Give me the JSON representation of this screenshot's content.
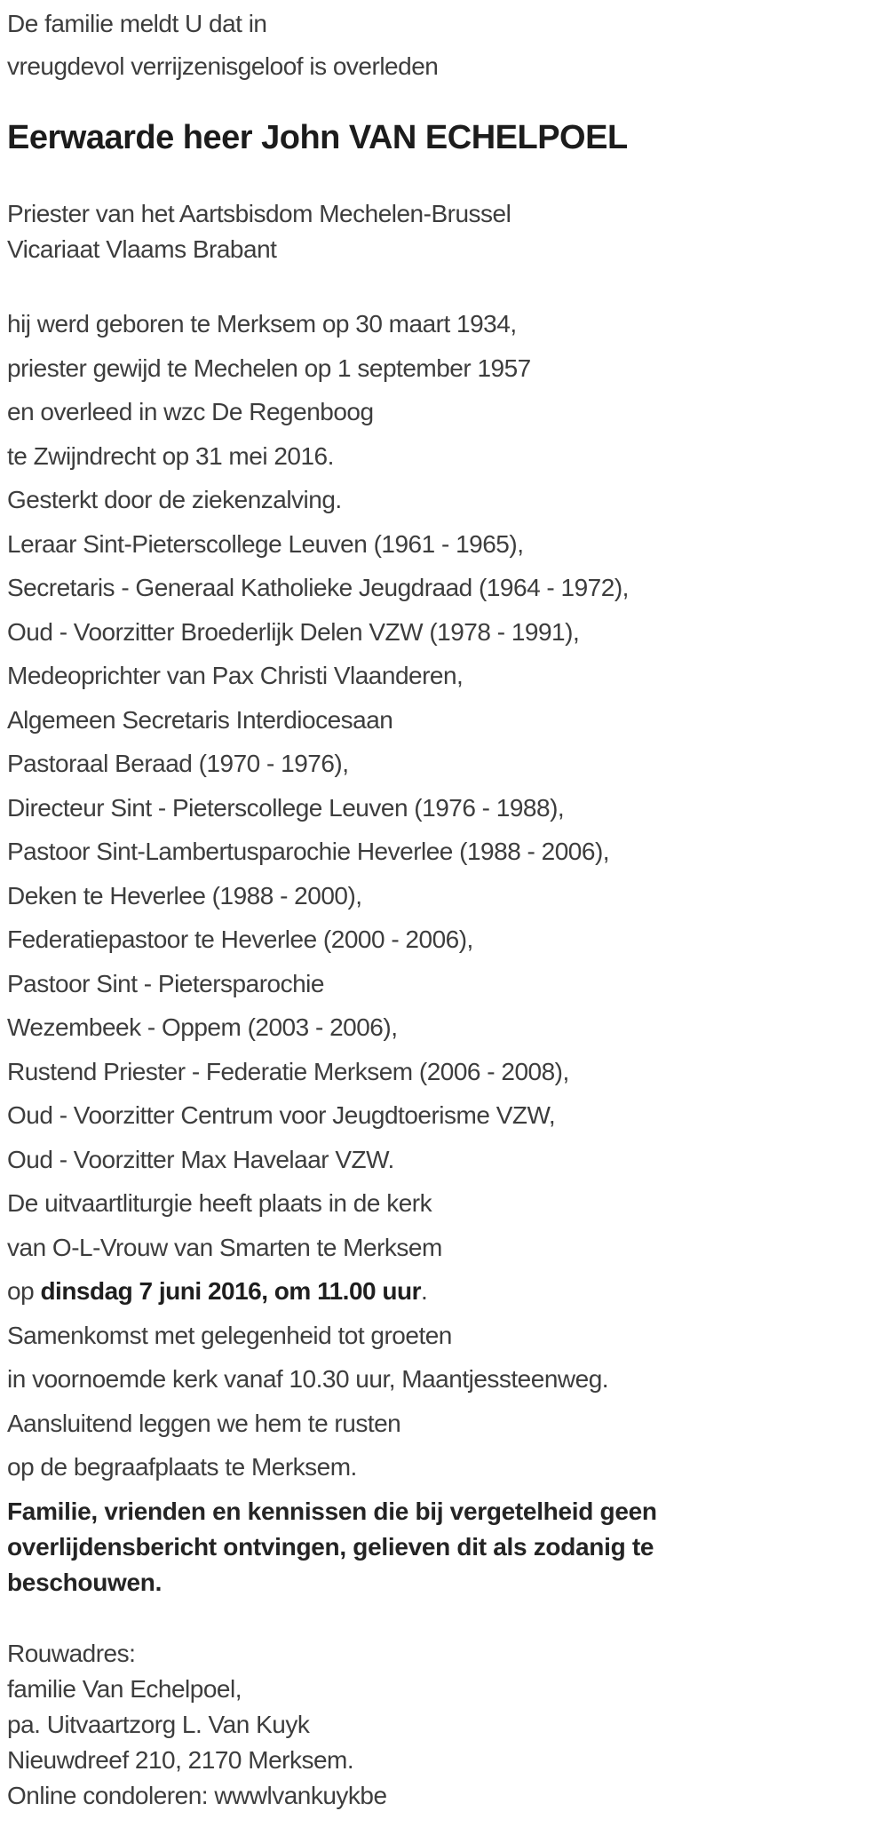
{
  "colors": {
    "background": "#ffffff",
    "body_text": "#3d3d3d",
    "emphasis_text": "#1c1c1c"
  },
  "announcement": {
    "intro_lines": [
      "De familie meldt U dat in",
      "vreugdevol verrijzenisgeloof is overleden"
    ],
    "title": "Eerwaarde heer John VAN ECHELPOEL",
    "subtitle_lines": [
      "Priester van het Aartsbisdom Mechelen-Brussel",
      "Vicariaat Vlaams Brabant"
    ],
    "body_lines": [
      "hij werd geboren te Merksem op 30 maart 1934,",
      "priester gewijd te Mechelen op 1 september 1957",
      "en overleed in wzc De Regenboog",
      "te Zwijndrecht op 31 mei 2016.",
      "Gesterkt door de ziekenzalving.",
      "Leraar Sint-Pieterscollege Leuven (1961 - 1965),",
      "Secretaris - Generaal Katholieke Jeugdraad (1964 - 1972),",
      "Oud - Voorzitter Broederlijk Delen VZW (1978 - 1991),",
      "Medeoprichter van Pax Christi Vlaanderen,",
      "Algemeen Secretaris Interdiocesaan",
      "Pastoraal Beraad (1970 - 1976),",
      "Directeur Sint - Pieterscollege Leuven (1976 - 1988),",
      "Pastoor Sint-Lambertusparochie Heverlee (1988 - 2006),",
      "Deken te Heverlee (1988 - 2000),",
      "Federatiepastoor te Heverlee (2000 - 2006),",
      "Pastoor Sint - Pietersparochie",
      "Wezembeek - Oppem (2003 - 2006),",
      "Rustend Priester - Federatie Merksem (2006 - 2008),",
      "Oud - Voorzitter Centrum voor Jeugdtoerisme VZW,",
      "Oud - Voorzitter Max Havelaar VZW.",
      "De uitvaartliturgie heeft plaats in de kerk",
      "van O-L-Vrouw van Smarten te Merksem"
    ],
    "ceremony_date_line": {
      "prefix": "op ",
      "emphasis": "dinsdag 7 juni 2016, om 11.00 uur",
      "suffix": "."
    },
    "body_lines_after": [
      "Samenkomst met gelegenheid tot groeten",
      "in voornoemde kerk vanaf 10.30 uur, Maantjessteenweg.",
      "Aansluitend leggen we hem te rusten",
      "op de begraafplaats te Merksem."
    ],
    "notice_lines": [
      "Familie, vrienden en kennissen die bij vergetelheid geen",
      "overlijdensbericht ontvingen, gelieven dit als zodanig te",
      "beschouwen."
    ],
    "mourning": {
      "label": "Rouwadres:",
      "lines": [
        "familie Van Echelpoel,",
        "pa. Uitvaartzorg L. Van Kuyk",
        "Nieuwdreef 210, 2170 Merksem.",
        "Online condoleren: wwwlvankuykbe"
      ]
    }
  }
}
